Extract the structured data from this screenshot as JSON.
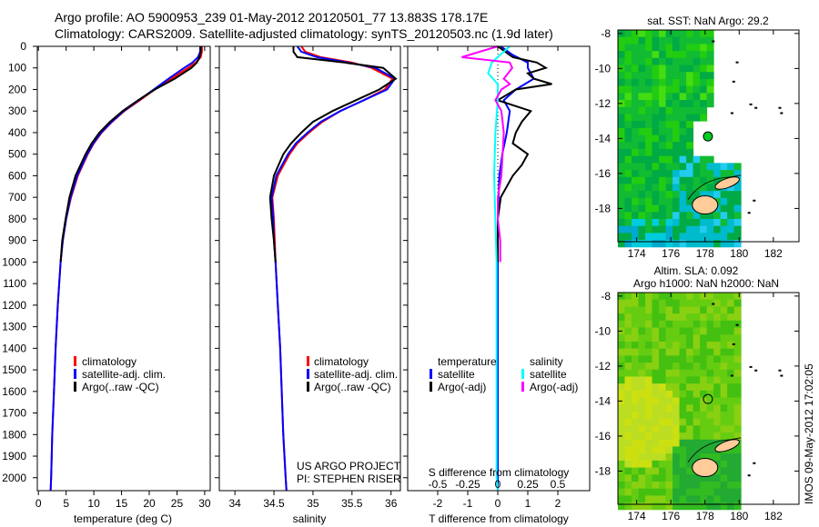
{
  "title": {
    "line1": "Argo profile: AO 5900953_239 01-May-2012 20120501_77 13.883S 178.17E",
    "line2": "Climatology: CARS2009. Satellite-adjusted climatology: synTS_20120503.nc (1.9d later)"
  },
  "colors": {
    "climatology": "#ff0000",
    "satellite": "#0000ff",
    "argo": "#000000",
    "sal_satellite": "#00ffff",
    "sal_argo": "#ff00ff"
  },
  "chart_data": [
    {
      "type": "line",
      "panel": "temperature",
      "xlabel": "temperature (deg C)",
      "ylabel": "",
      "xlim": [
        -0.2,
        31
      ],
      "ylim": [
        2060,
        0
      ],
      "xticks": [
        0,
        5,
        10,
        15,
        20,
        25,
        30
      ],
      "yticks": [
        0,
        100,
        200,
        300,
        400,
        500,
        600,
        700,
        800,
        900,
        1000,
        1100,
        1200,
        1300,
        1400,
        1500,
        1600,
        1700,
        1800,
        1900,
        2000
      ],
      "legend": [
        "climatology",
        "satellite-adj. clim.",
        "Argo(..raw -QC)"
      ],
      "depth": [
        0,
        25,
        50,
        75,
        100,
        150,
        200,
        250,
        300,
        350,
        400,
        450,
        500,
        600,
        700,
        800,
        900,
        1000,
        1200,
        1400,
        1600,
        1800,
        2000,
        2060
      ],
      "series": [
        {
          "name": "climatology",
          "color": "#ff0000",
          "values": [
            29.5,
            29.5,
            29.3,
            28.4,
            27,
            24,
            21,
            18.3,
            15.5,
            13.3,
            11.4,
            10,
            8.9,
            7.1,
            5.9,
            5.0,
            4.4,
            4.0,
            3.5,
            3.1,
            2.8,
            2.5,
            2.3,
            2.2
          ]
        },
        {
          "name": "satellite-adj. clim.",
          "color": "#0000ff",
          "values": [
            29.2,
            29.2,
            28.8,
            27.8,
            26.3,
            23.5,
            20.8,
            18.1,
            15.4,
            13.2,
            11.3,
            9.9,
            8.8,
            7.0,
            5.8,
            5.0,
            4.4,
            4.0,
            3.5,
            3.1,
            2.8,
            2.5,
            2.3,
            2.2
          ]
        },
        {
          "name": "Argo(..raw -QC)",
          "color": "#000000",
          "values": [
            29.3,
            29.3,
            29.1,
            28.6,
            27.6,
            24.6,
            21.0,
            18.0,
            15.2,
            12.9,
            11.0,
            9.6,
            8.5,
            6.7,
            5.6,
            4.9,
            4.3,
            4.0
          ]
        }
      ]
    },
    {
      "type": "line",
      "panel": "salinity",
      "xlabel": "salinity",
      "xlim": [
        33.8,
        36.12
      ],
      "ylim": [
        2060,
        0
      ],
      "xticks": [
        34,
        34.5,
        35,
        35.5,
        36
      ],
      "legend": [
        "climatology",
        "satellite-adj. clim.",
        "Argo(..raw -QC)"
      ],
      "annotation": [
        "US ARGO PROJECT",
        "PI: STEPHEN RISER"
      ],
      "depth": [
        0,
        25,
        50,
        75,
        100,
        150,
        200,
        250,
        300,
        350,
        400,
        450,
        500,
        600,
        700,
        800,
        900,
        1000,
        1200,
        1400,
        1600,
        1800,
        2000,
        2060
      ],
      "series": [
        {
          "name": "climatology",
          "color": "#ff0000",
          "values": [
            34.85,
            34.9,
            35.1,
            35.5,
            35.75,
            36.02,
            35.92,
            35.65,
            35.35,
            35.12,
            34.95,
            34.8,
            34.7,
            34.55,
            34.48,
            34.5,
            34.51,
            34.52,
            34.55,
            34.58,
            34.6,
            34.62,
            34.65,
            34.66
          ]
        },
        {
          "name": "satellite-adj. clim.",
          "color": "#0000ff",
          "values": [
            34.8,
            34.85,
            35.05,
            35.45,
            35.8,
            36.05,
            35.95,
            35.65,
            35.35,
            35.1,
            34.93,
            34.78,
            34.68,
            34.53,
            34.47,
            34.49,
            34.5,
            34.52,
            34.55,
            34.58,
            34.6,
            34.62,
            34.65,
            34.66
          ]
        },
        {
          "name": "Argo(..raw -QC)",
          "color": "#000000",
          "values": [
            34.75,
            34.75,
            34.8,
            35.4,
            35.9,
            36.06,
            35.85,
            35.55,
            35.25,
            35.0,
            34.85,
            34.72,
            34.62,
            34.5,
            34.45,
            34.47,
            34.5,
            34.52
          ]
        }
      ]
    },
    {
      "type": "line",
      "panel": "difference",
      "xlabel": "T difference from climatology",
      "x2label": "S difference from climatology",
      "xlim": [
        -3,
        3.06
      ],
      "x2lim": [
        -0.75,
        0.765
      ],
      "ylim": [
        2060,
        0
      ],
      "xticks": [
        -2,
        -1,
        0,
        1,
        2
      ],
      "x2ticks": [
        "-0.5",
        "-0.25",
        "0",
        "0.25",
        "0.5"
      ],
      "x2tick_values": [
        -0.5,
        -0.25,
        0,
        0.25,
        0.5
      ],
      "legend_headers": [
        "temperature",
        "salinity"
      ],
      "legend": [
        "satellite",
        "Argo(-adj)",
        "satellite",
        "Argo(-adj)"
      ],
      "series": [
        {
          "name": "T satellite",
          "axis": "T",
          "color": "#0000ff",
          "depth": [
            0,
            40,
            75,
            100,
            150,
            200,
            250,
            300,
            400,
            500,
            600,
            800,
            1000,
            1500,
            2060
          ],
          "values": [
            0.1,
            0.5,
            1.0,
            1.0,
            1.2,
            0.6,
            0.2,
            0.4,
            0.3,
            0.15,
            0.05,
            0,
            0,
            0,
            0
          ]
        },
        {
          "name": "T Argo(-adj)",
          "axis": "T",
          "color": "#000000",
          "depth": [
            0,
            50,
            75,
            100,
            125,
            150,
            175,
            200,
            250,
            300,
            350,
            400,
            450,
            500,
            550,
            600,
            700,
            800,
            1000
          ],
          "values": [
            0,
            0.5,
            1.3,
            1.6,
            1.0,
            1.2,
            1.8,
            0.6,
            0,
            1.1,
            0.8,
            0.6,
            0.5,
            1.0,
            0.8,
            0.5,
            0.1,
            0,
            0
          ]
        },
        {
          "name": "S satellite",
          "axis": "S",
          "color": "#00ffff",
          "depth": [
            0,
            25,
            75,
            125,
            175,
            250,
            400,
            600,
            1000,
            1500,
            2000,
            2060
          ],
          "values": [
            0.1,
            0.05,
            -0.05,
            -0.08,
            0,
            0,
            -0.02,
            -0.03,
            -0.01,
            -0.01,
            -0.01,
            0
          ]
        },
        {
          "name": "S Argo(-adj)",
          "axis": "S",
          "color": "#ff00ff",
          "depth": [
            0,
            50,
            75,
            100,
            150,
            175,
            200,
            250,
            300,
            400,
            500,
            600,
            700,
            800,
            900,
            1000
          ],
          "values": [
            0,
            -0.3,
            0.1,
            0.12,
            0.05,
            0.1,
            0.03,
            -0.02,
            0.03,
            0.05,
            0.04,
            0.03,
            0,
            0,
            0.02,
            0.02
          ]
        }
      ]
    },
    {
      "type": "heatmap",
      "panel": "map-sst",
      "title": "sat. SST: NaN Argo: 29.2",
      "xlim": [
        172.9,
        183.5
      ],
      "ylim": [
        -19.9,
        -7.8
      ],
      "xticks": [
        174,
        176,
        178,
        180,
        182
      ],
      "yticks": [
        -8,
        -10,
        -12,
        -14,
        -16,
        -18
      ],
      "marker": {
        "lon": 178.17,
        "lat": -13.883
      }
    },
    {
      "type": "heatmap",
      "panel": "map-sla",
      "title1": "Altim. SLA: 0.092",
      "title2": "Argo h1000: NaN h2000: NaN",
      "xlim": [
        172.9,
        183.5
      ],
      "ylim": [
        -19.9,
        -7.8
      ],
      "xticks": [
        174,
        176,
        178,
        180,
        182
      ],
      "yticks": [
        -8,
        -10,
        -12,
        -14,
        -16,
        -18
      ],
      "marker": {
        "lon": 178.17,
        "lat": -13.883
      }
    }
  ],
  "footer": "IMOS 09-May-2012 17:02:05"
}
